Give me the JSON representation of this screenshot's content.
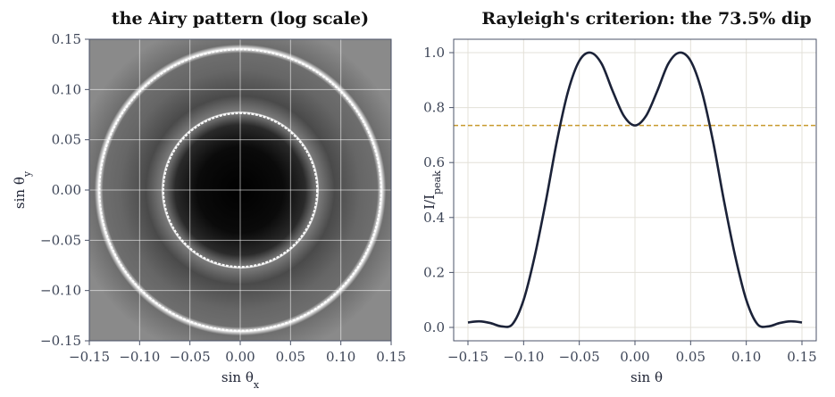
{
  "chart_data": [
    {
      "type": "heatmap",
      "title": "the Airy pattern (log scale)",
      "xlabel": "sin θx",
      "ylabel": "sin θy",
      "xlim": [
        -0.15,
        0.15
      ],
      "ylim": [
        -0.15,
        0.15
      ],
      "x_ticks": [
        "−0.15",
        "−0.10",
        "−0.05",
        "0.00",
        "0.05",
        "0.10",
        "0.15"
      ],
      "y_ticks": [
        "0.15",
        "0.10",
        "0.05",
        "0.00",
        "−0.05",
        "−0.10",
        "−0.15"
      ],
      "ring_radii": [
        0.0765,
        0.14
      ],
      "colormap": "gray",
      "grid": true
    },
    {
      "type": "line",
      "title": "Rayleigh's criterion: the 73.5% dip",
      "xlabel": "sin θ",
      "ylabel": "I / I_peak",
      "xlim": [
        -0.15,
        0.15
      ],
      "ylim": [
        0,
        1.0
      ],
      "x_ticks": [
        "−0.15",
        "−0.10",
        "−0.05",
        "0.00",
        "0.05",
        "0.10",
        "0.15"
      ],
      "y_ticks": [
        "0.0",
        "0.2",
        "0.4",
        "0.6",
        "0.8",
        "1.0"
      ],
      "series": [
        {
          "color": "#1b2238",
          "x": [
            -0.15,
            -0.14,
            -0.13,
            -0.12,
            -0.11,
            -0.1,
            -0.09,
            -0.08,
            -0.07,
            -0.06,
            -0.05,
            -0.04,
            -0.03,
            -0.02,
            -0.01,
            0.0,
            0.01,
            0.02,
            0.03,
            0.04,
            0.05,
            0.06,
            0.07,
            0.08,
            0.09,
            0.1,
            0.11,
            0.12,
            0.13,
            0.14,
            0.15
          ],
          "y": [
            0.018,
            0.022,
            0.016,
            0.004,
            0.012,
            0.1,
            0.26,
            0.46,
            0.68,
            0.86,
            0.97,
            1.0,
            0.96,
            0.86,
            0.77,
            0.735,
            0.77,
            0.86,
            0.96,
            1.0,
            0.97,
            0.86,
            0.68,
            0.46,
            0.26,
            0.1,
            0.012,
            0.004,
            0.016,
            0.022,
            0.018
          ]
        }
      ],
      "reference_line": {
        "y": 0.735,
        "color": "#c89a2e",
        "style": "dashed"
      },
      "grid": true
    }
  ]
}
